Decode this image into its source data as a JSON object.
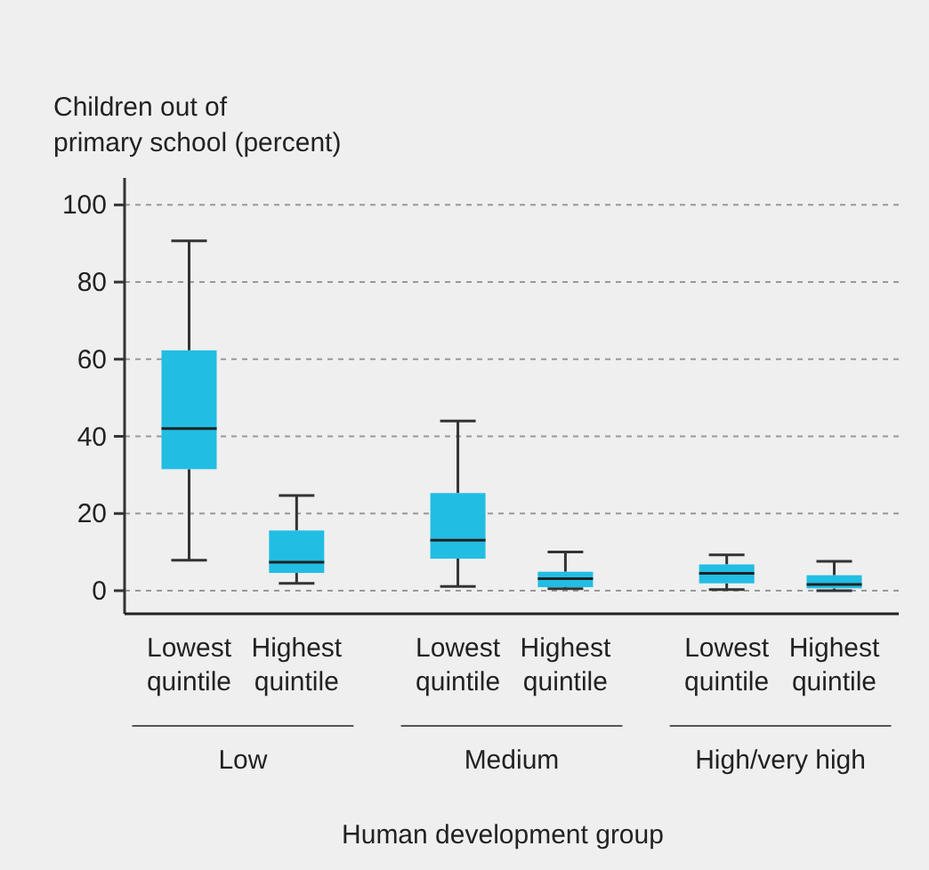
{
  "chart_data": {
    "type": "box",
    "ylabel": "Children out of\nprimary school (percent)",
    "xlabel": "Human development group",
    "categories": [
      "Lowest\nquintile",
      "Highest\nquintile",
      "Lowest\nquintile",
      "Highest\nquintile",
      "Lowest\nquintile",
      "Highest\nquintile"
    ],
    "annotations": [
      "Low",
      "Medium",
      "High/very high"
    ],
    "color": "#22bde3",
    "ylim": [
      -6,
      107
    ],
    "yticks": [
      0,
      20,
      40,
      60,
      80,
      100
    ],
    "grid": "y",
    "boxes": [
      {
        "low": 7.9,
        "q1": 31.5,
        "median": 42,
        "q3": 62.3,
        "high": 90.7
      },
      {
        "low": 1.9,
        "q1": 4.6,
        "median": 7.4,
        "q3": 15.6,
        "high": 24.7
      },
      {
        "low": 1.1,
        "q1": 8.3,
        "median": 13.1,
        "q3": 25.3,
        "high": 44
      },
      {
        "low": 0.5,
        "q1": 0.9,
        "median": 3.1,
        "q3": 4.9,
        "high": 10
      },
      {
        "low": 0.3,
        "q1": 1.9,
        "median": 4.5,
        "q3": 6.8,
        "high": 9.3
      },
      {
        "low": 0,
        "q1": 0.6,
        "median": 1.6,
        "q3": 4,
        "high": 7.6
      }
    ]
  }
}
